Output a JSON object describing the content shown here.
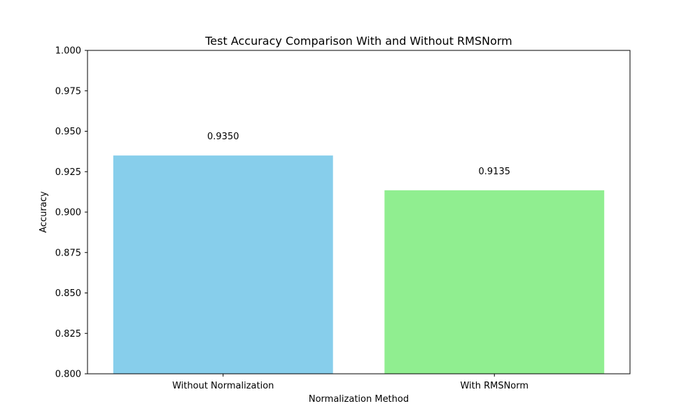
{
  "chart_data": {
    "type": "bar",
    "title": "Test Accuracy Comparison With and Without RMSNorm",
    "xlabel": "Normalization Method",
    "ylabel": "Accuracy",
    "categories": [
      "Without Normalization",
      "With RMSNorm"
    ],
    "values": [
      0.935,
      0.9135
    ],
    "data_labels": [
      "0.9350",
      "0.9135"
    ],
    "colors": [
      "#87ceeb",
      "#90ee90"
    ],
    "ylim": [
      0.8,
      1.0
    ],
    "yticks": [
      0.8,
      0.825,
      0.85,
      0.875,
      0.9,
      0.925,
      0.95,
      0.975,
      1.0
    ],
    "ytick_labels": [
      "0.800",
      "0.825",
      "0.850",
      "0.875",
      "0.900",
      "0.925",
      "0.950",
      "0.975",
      "1.000"
    ],
    "grid": false,
    "legend": "none"
  }
}
